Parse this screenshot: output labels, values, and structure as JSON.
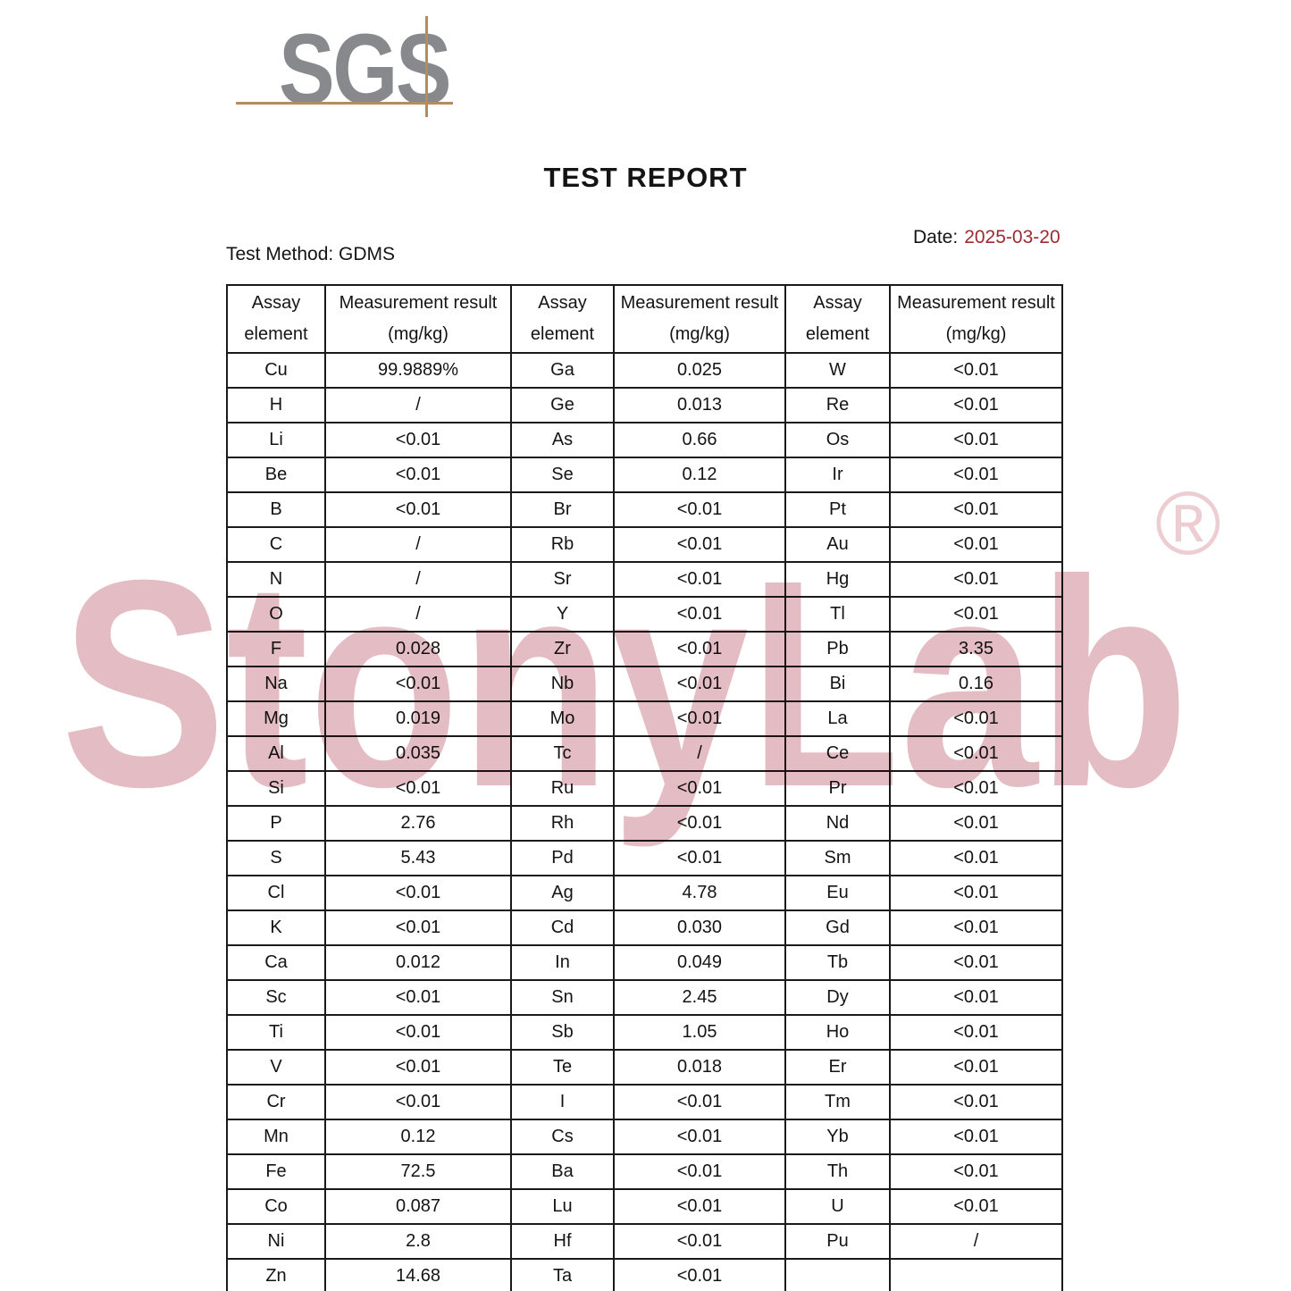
{
  "logo": {
    "text": "SGS"
  },
  "title": "TEST REPORT",
  "date_label": "Date:",
  "date_value": "2025-03-20",
  "test_method": "Test Method: GDMS",
  "watermark": {
    "text": "StonyLab",
    "registered": "®",
    "color": "#e3bdc3"
  },
  "accent_colors": {
    "date_red": "#9e2a31",
    "logo_gray": "#88898c",
    "logo_line_tan": "#b28e5c"
  },
  "table": {
    "header": {
      "assay_line1": "Assay",
      "assay_line2": "element",
      "result_line1": "Measurement result",
      "result_line2": "(mg/kg)"
    },
    "groups": [
      {
        "rows": [
          [
            "Cu",
            "99.9889%"
          ],
          [
            "H",
            "/"
          ],
          [
            "Li",
            "<0.01"
          ],
          [
            "Be",
            "<0.01"
          ],
          [
            "B",
            "<0.01"
          ],
          [
            "C",
            "/"
          ],
          [
            "N",
            "/"
          ],
          [
            "O",
            "/"
          ],
          [
            "F",
            "0.028"
          ],
          [
            "Na",
            "<0.01"
          ],
          [
            "Mg",
            "0.019"
          ],
          [
            "Al",
            "0.035"
          ],
          [
            "Si",
            "<0.01"
          ],
          [
            "P",
            "2.76"
          ],
          [
            "S",
            "5.43"
          ],
          [
            "Cl",
            "<0.01"
          ],
          [
            "K",
            "<0.01"
          ],
          [
            "Ca",
            "0.012"
          ],
          [
            "Sc",
            "<0.01"
          ],
          [
            "Ti",
            "<0.01"
          ],
          [
            "V",
            "<0.01"
          ],
          [
            "Cr",
            "<0.01"
          ],
          [
            "Mn",
            "0.12"
          ],
          [
            "Fe",
            "72.5"
          ],
          [
            "Co",
            "0.087"
          ],
          [
            "Ni",
            "2.8"
          ],
          [
            "Zn",
            "14.68"
          ]
        ]
      },
      {
        "rows": [
          [
            "Ga",
            "0.025"
          ],
          [
            "Ge",
            "0.013"
          ],
          [
            "As",
            "0.66"
          ],
          [
            "Se",
            "0.12"
          ],
          [
            "Br",
            "<0.01"
          ],
          [
            "Rb",
            "<0.01"
          ],
          [
            "Sr",
            "<0.01"
          ],
          [
            "Y",
            "<0.01"
          ],
          [
            "Zr",
            "<0.01"
          ],
          [
            "Nb",
            "<0.01"
          ],
          [
            "Mo",
            "<0.01"
          ],
          [
            "Tc",
            "/"
          ],
          [
            "Ru",
            "<0.01"
          ],
          [
            "Rh",
            "<0.01"
          ],
          [
            "Pd",
            "<0.01"
          ],
          [
            "Ag",
            "4.78"
          ],
          [
            "Cd",
            "0.030"
          ],
          [
            "In",
            "0.049"
          ],
          [
            "Sn",
            "2.45"
          ],
          [
            "Sb",
            "1.05"
          ],
          [
            "Te",
            "0.018"
          ],
          [
            "I",
            "<0.01"
          ],
          [
            "Cs",
            "<0.01"
          ],
          [
            "Ba",
            "<0.01"
          ],
          [
            "Lu",
            "<0.01"
          ],
          [
            "Hf",
            "<0.01"
          ],
          [
            "Ta",
            "<0.01"
          ]
        ]
      },
      {
        "rows": [
          [
            "W",
            "<0.01"
          ],
          [
            "Re",
            "<0.01"
          ],
          [
            "Os",
            "<0.01"
          ],
          [
            "Ir",
            "<0.01"
          ],
          [
            "Pt",
            "<0.01"
          ],
          [
            "Au",
            "<0.01"
          ],
          [
            "Hg",
            "<0.01"
          ],
          [
            "Tl",
            "<0.01"
          ],
          [
            "Pb",
            "3.35"
          ],
          [
            "Bi",
            "0.16"
          ],
          [
            "La",
            "<0.01"
          ],
          [
            "Ce",
            "<0.01"
          ],
          [
            "Pr",
            "<0.01"
          ],
          [
            "Nd",
            "<0.01"
          ],
          [
            "Sm",
            "<0.01"
          ],
          [
            "Eu",
            "<0.01"
          ],
          [
            "Gd",
            "<0.01"
          ],
          [
            "Tb",
            "<0.01"
          ],
          [
            "Dy",
            "<0.01"
          ],
          [
            "Ho",
            "<0.01"
          ],
          [
            "Er",
            "<0.01"
          ],
          [
            "Tm",
            "<0.01"
          ],
          [
            "Yb",
            "<0.01"
          ],
          [
            "Th",
            "<0.01"
          ],
          [
            "U",
            "<0.01"
          ],
          [
            "Pu",
            "/"
          ],
          [
            "",
            ""
          ]
        ]
      }
    ]
  }
}
